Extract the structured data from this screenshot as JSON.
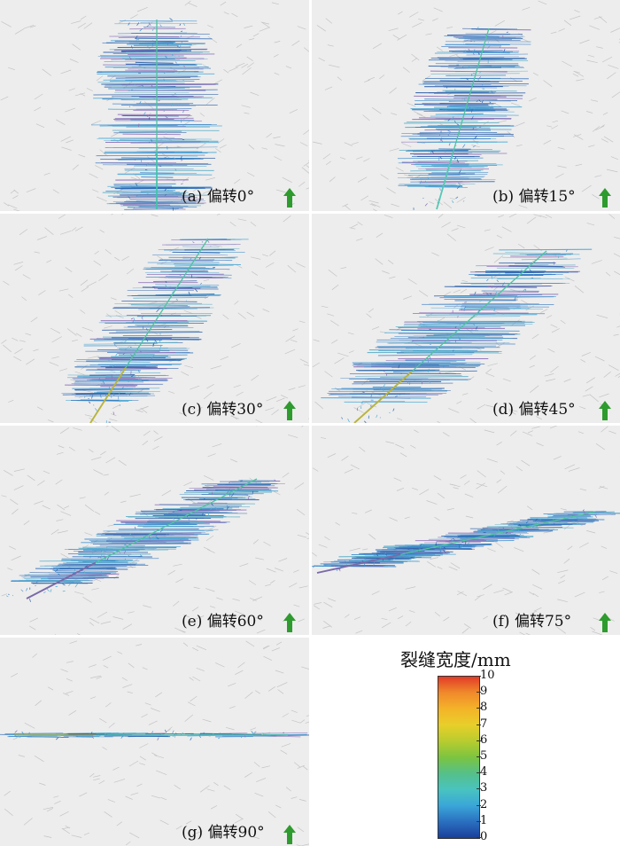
{
  "panels": [
    {
      "id": "a",
      "caption": "(a) 偏转0°",
      "angle": 0
    },
    {
      "id": "b",
      "caption": "(b) 偏转15°",
      "angle": 15
    },
    {
      "id": "c",
      "caption": "(c) 偏转30°",
      "angle": 30
    },
    {
      "id": "d",
      "caption": "(d) 偏转45°",
      "angle": 45
    },
    {
      "id": "e",
      "caption": "(e) 偏转60°",
      "angle": 60
    },
    {
      "id": "f",
      "caption": "(f) 偏转75°",
      "angle": 75
    },
    {
      "id": "g",
      "caption": "(g) 偏转90°",
      "angle": 90
    }
  ],
  "legend": {
    "title": "裂缝宽度/mm",
    "ticks": [
      "10",
      "9",
      "8",
      "7",
      "6",
      "5",
      "4",
      "3",
      "2",
      "1",
      "0"
    ],
    "range": [
      0,
      10
    ]
  },
  "colors": {
    "background": "#ededed",
    "arrow": "#2e9b2e",
    "main_fracture": "#4fc3a0"
  }
}
